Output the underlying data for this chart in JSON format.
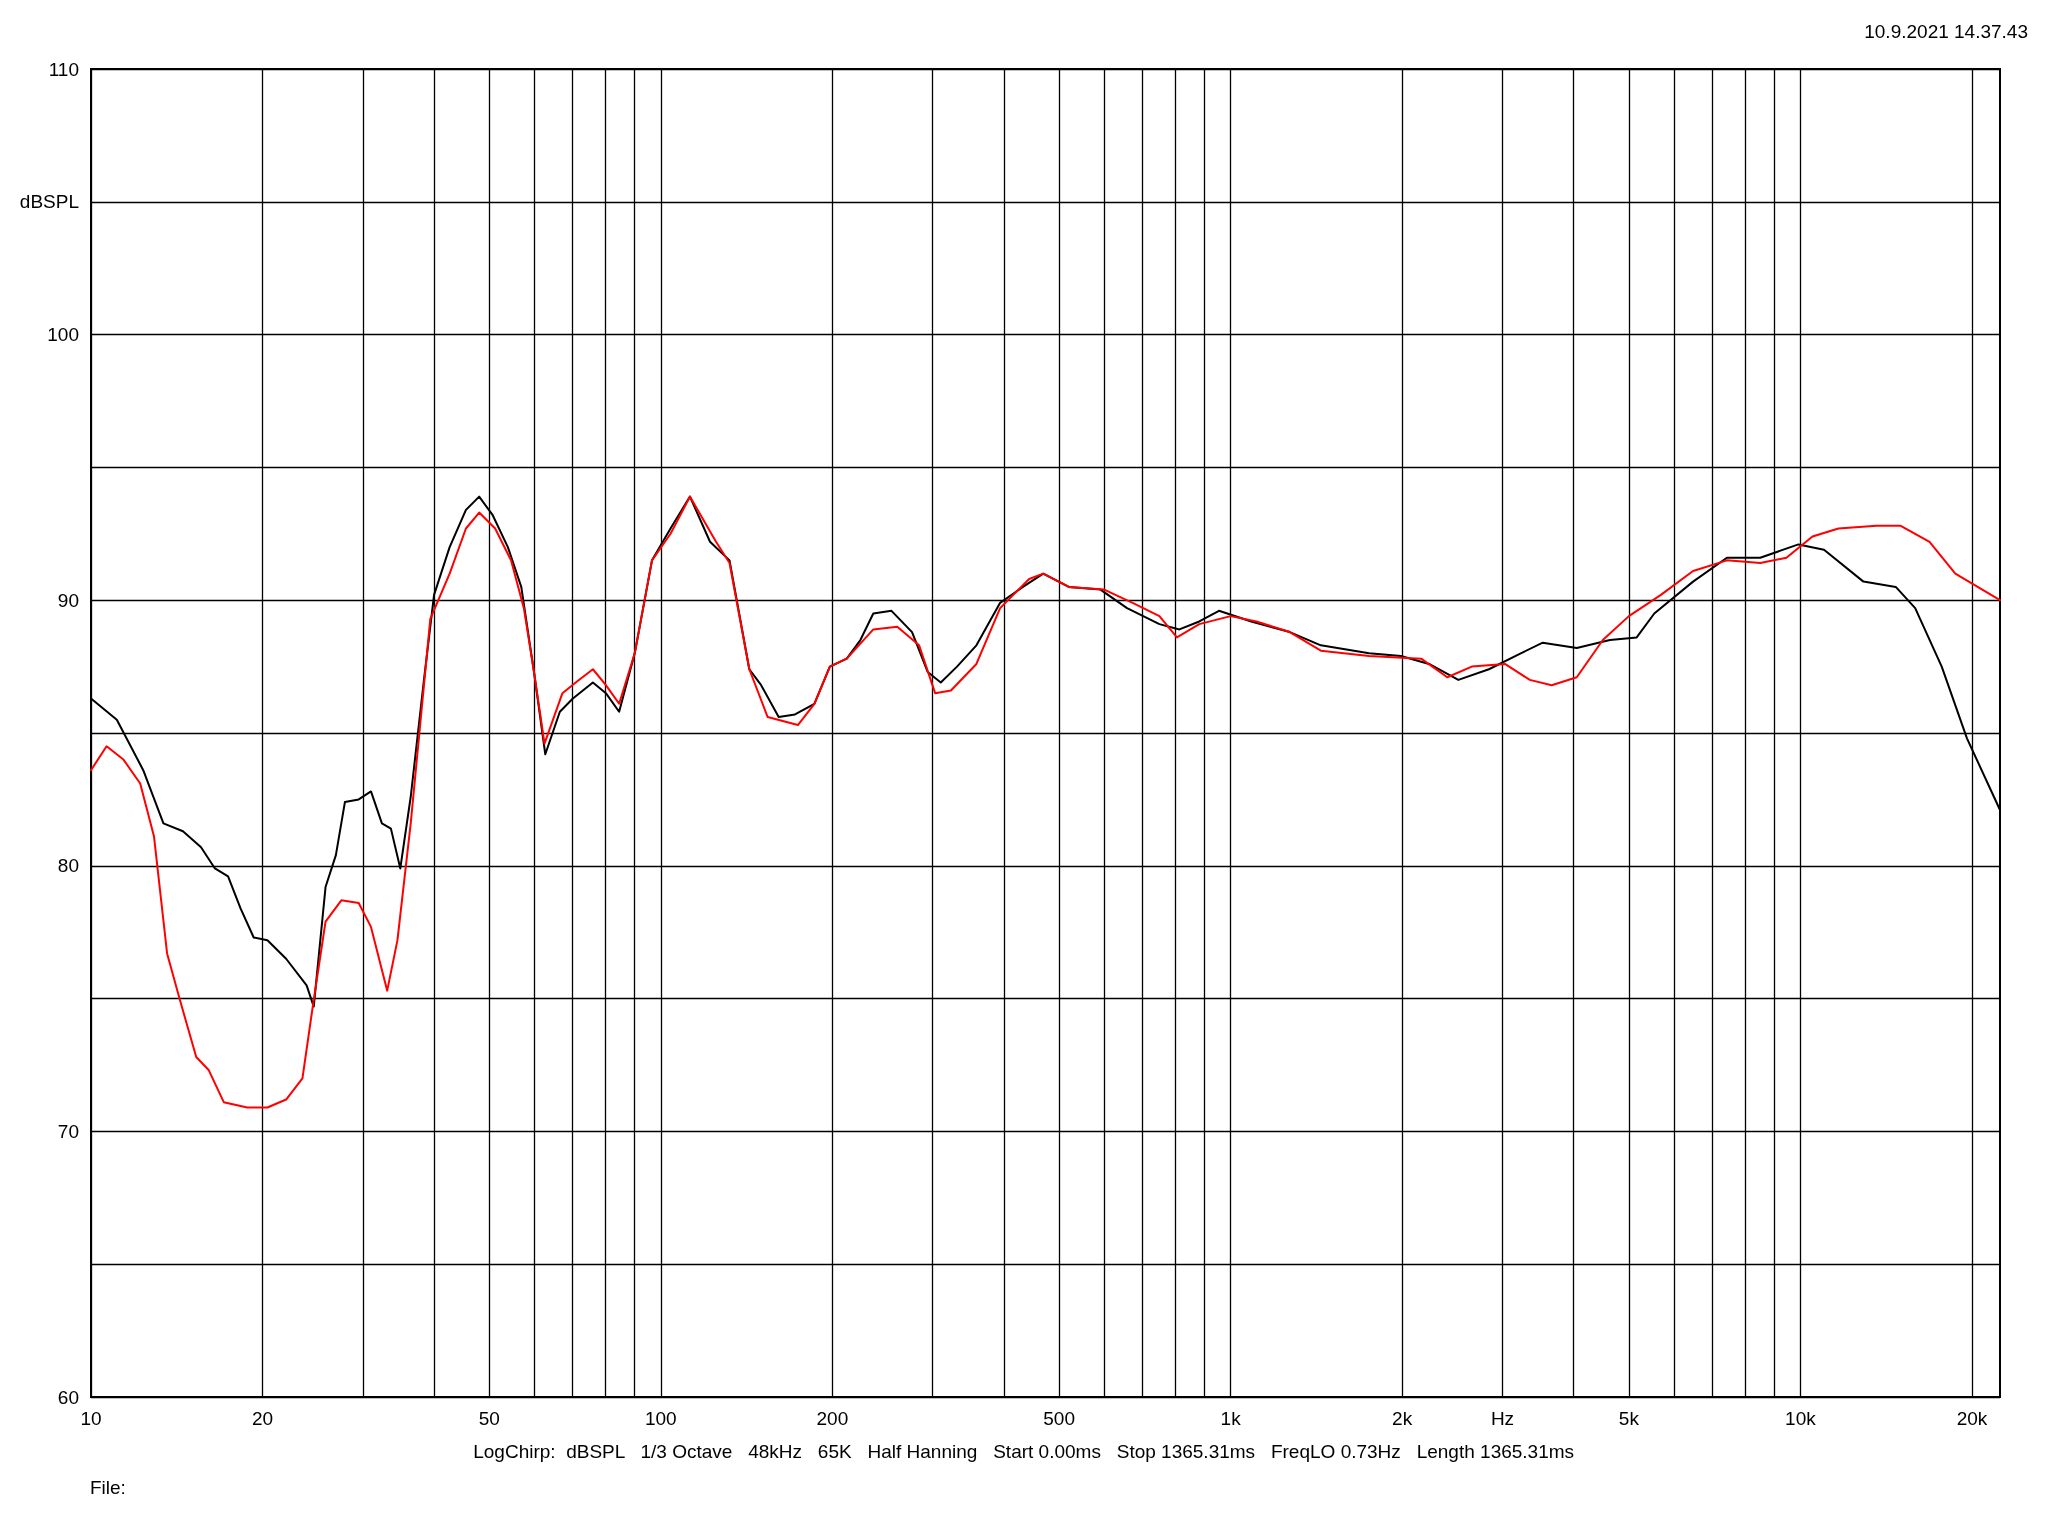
{
  "chart_data": {
    "type": "line",
    "annotations": [
      "10.9.2021 14.37.43",
      "LogChirp:  dBSPL   1/3 Octave   48kHz   65K   Half Hanning   Start 0.00ms   Stop 1365.31ms   FreqLO 0.73Hz   Length 1365.31ms",
      "File:"
    ],
    "log": "x",
    "grid": true,
    "marker": "none",
    "line_style": "solid",
    "xlim": [
      10,
      22400
    ],
    "ylim": [
      60,
      110
    ],
    "xticks": [
      10,
      20,
      {
        "value": 30,
        "label": null
      },
      {
        "value": 40,
        "label": null
      },
      50,
      {
        "value": 60,
        "label": null
      },
      {
        "value": 70,
        "label": null
      },
      {
        "value": 80,
        "label": null
      },
      {
        "value": 90,
        "label": null
      },
      100,
      200,
      {
        "value": 300,
        "label": null
      },
      {
        "value": 400,
        "label": null
      },
      500,
      {
        "value": 600,
        "label": null
      },
      {
        "value": 700,
        "label": null
      },
      {
        "value": 800,
        "label": null
      },
      {
        "value": 900,
        "label": null
      },
      {
        "value": 1000,
        "label": "1k"
      },
      {
        "value": 2000,
        "label": "2k"
      },
      {
        "value": 3000,
        "label": "Hz"
      },
      {
        "value": 4000,
        "label": null
      },
      {
        "value": 5000,
        "label": "5k"
      },
      {
        "value": 6000,
        "label": null
      },
      {
        "value": 7000,
        "label": null
      },
      {
        "value": 8000,
        "label": null
      },
      {
        "value": 9000,
        "label": null
      },
      {
        "value": 10000,
        "label": "10k"
      },
      {
        "value": 20000,
        "label": "20k"
      }
    ],
    "yticks": [
      60,
      {
        "value": 65,
        "label": null
      },
      70,
      {
        "value": 75,
        "label": null
      },
      80,
      {
        "value": 85,
        "label": null
      },
      90,
      {
        "value": 95,
        "label": null
      },
      100,
      {
        "value": 105,
        "label": "dBSPL"
      },
      110
    ],
    "series": [
      {
        "color": "#000000",
        "x": [
          10,
          11.1,
          12.35,
          13.4,
          14.5,
          15.6,
          16.5,
          17.4,
          18.3,
          19.3,
          20.4,
          22,
          23.9,
          24.6,
          25.8,
          26.9,
          27.9,
          29.5,
          31,
          32.4,
          33.6,
          34.9,
          36.4,
          38.4,
          40,
          42.6,
          45.5,
          48,
          50.7,
          53.9,
          56.9,
          59.9,
          62.7,
          66.5,
          70.1,
          76,
          80.1,
          84.5,
          90,
          96.5,
          104,
          112.5,
          122,
          132,
          143,
          150,
          161,
          172,
          186,
          198,
          212,
          224,
          236,
          254,
          276,
          294,
          310,
          331,
          358,
          394,
          432,
          469,
          520,
          591,
          658,
          750,
          813,
          881,
          954,
          1087,
          1270,
          1440,
          1750,
          1990,
          2230,
          2510,
          2840,
          3230,
          3530,
          4050,
          4630,
          5160,
          5540,
          6480,
          7430,
          8500,
          9920,
          11000,
          12900,
          14700,
          15900,
          17700,
          19600,
          22400
        ],
        "values": [
          86.3,
          85.5,
          83.6,
          81.6,
          81.3,
          80.7,
          79.9,
          79.6,
          78.4,
          77.3,
          77.2,
          76.5,
          75.5,
          74.7,
          79.2,
          80.4,
          82.4,
          82.5,
          82.8,
          81.6,
          81.4,
          79.9,
          82.6,
          87.0,
          90.2,
          92.0,
          93.4,
          93.9,
          93.2,
          92.0,
          90.5,
          87.3,
          84.2,
          85.8,
          86.3,
          86.9,
          86.5,
          85.8,
          88.0,
          91.5,
          92.7,
          93.9,
          92.2,
          91.5,
          87.4,
          86.8,
          85.6,
          85.7,
          86.1,
          87.5,
          87.8,
          88.5,
          89.5,
          89.6,
          88.8,
          87.3,
          86.9,
          87.5,
          88.3,
          89.9,
          90.5,
          91.0,
          90.5,
          90.4,
          89.7,
          89.1,
          88.9,
          89.2,
          89.6,
          89.2,
          88.8,
          88.3,
          88.0,
          87.9,
          87.6,
          87.0,
          87.4,
          88.0,
          88.4,
          88.2,
          88.5,
          88.6,
          89.5,
          90.7,
          91.6,
          91.6,
          92.1,
          91.9,
          90.7,
          90.5,
          89.7,
          87.5,
          84.8,
          82.1
        ]
      },
      {
        "color": "#ff0000",
        "x": [
          10,
          10.65,
          11.4,
          12.2,
          12.9,
          13.6,
          14.3,
          15.3,
          16.1,
          17.1,
          18.8,
          20.4,
          22,
          23.5,
          24.5,
          25.8,
          27.5,
          29.5,
          31,
          33.1,
          34.5,
          36.4,
          39.4,
          42.6,
          45.5,
          48,
          51.2,
          54.6,
          57.5,
          59.9,
          62.5,
          67.2,
          70.9,
          76,
          80.1,
          84.5,
          90,
          96.5,
          104,
          112.5,
          125,
          132,
          143,
          154,
          174,
          186,
          198,
          212,
          236,
          260,
          284,
          303,
          323,
          358,
          394,
          443,
          469,
          520,
          600,
          673,
          750,
          805,
          881,
          1000,
          1110,
          1270,
          1440,
          1750,
          2160,
          2400,
          2650,
          3030,
          3350,
          3660,
          4050,
          4500,
          5000,
          5690,
          6480,
          7430,
          8500,
          9450,
          10500,
          11660,
          13600,
          15000,
          16850,
          18700,
          22400
        ],
        "values": [
          83.6,
          84.5,
          84.0,
          83.1,
          81.1,
          76.7,
          75.0,
          72.8,
          72.3,
          71.1,
          70.9,
          70.9,
          71.2,
          72.0,
          74.7,
          77.9,
          78.7,
          78.6,
          77.7,
          75.3,
          77.2,
          81.6,
          89.3,
          91.0,
          92.7,
          93.3,
          92.7,
          91.5,
          89.7,
          87.3,
          84.6,
          86.5,
          86.9,
          87.4,
          86.8,
          86.1,
          88.0,
          91.5,
          92.5,
          93.9,
          92.2,
          91.4,
          87.4,
          85.6,
          85.3,
          86.1,
          87.5,
          87.8,
          88.9,
          89.0,
          88.3,
          86.5,
          86.6,
          87.6,
          89.7,
          90.8,
          91.0,
          90.5,
          90.4,
          89.9,
          89.4,
          88.6,
          89.1,
          89.4,
          89.2,
          88.8,
          88.1,
          87.9,
          87.8,
          87.1,
          87.5,
          87.6,
          87.0,
          86.8,
          87.1,
          88.5,
          89.4,
          90.2,
          91.1,
          91.5,
          91.4,
          91.6,
          92.4,
          92.7,
          92.8,
          92.8,
          92.2,
          91.0,
          90.0
        ]
      }
    ]
  }
}
